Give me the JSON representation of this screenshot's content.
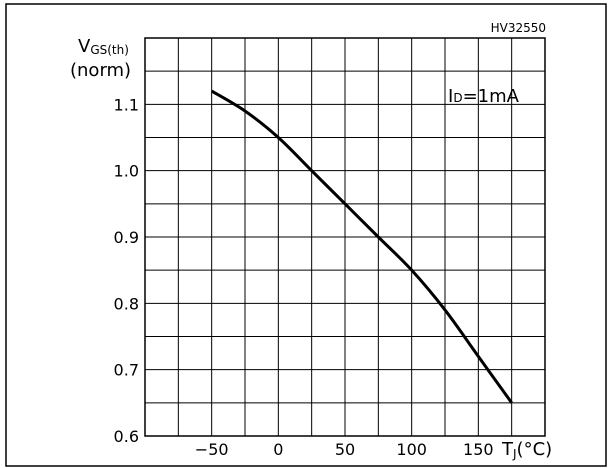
{
  "chart_data": {
    "type": "line",
    "code": "HV32550",
    "ylabel_main": "V",
    "ylabel_sub": "GS(th)",
    "ylabel_line2": "(norm)",
    "xlabel_main": "T",
    "xlabel_sub": "J",
    "xlabel_unit": "(°C)",
    "annotation": {
      "main": "I",
      "sub": "D",
      "rest": "=1mA"
    },
    "xlim": [
      -100,
      200
    ],
    "ylim": [
      0.6,
      1.2
    ],
    "xticks": [
      -50,
      0,
      50,
      100,
      150
    ],
    "xtick_labels": [
      "−50",
      "0",
      "50",
      "100",
      "150"
    ],
    "yticks": [
      0.6,
      0.7,
      0.8,
      0.9,
      1.0,
      1.1
    ],
    "ytick_labels": [
      "0.6",
      "0.7",
      "0.8",
      "0.9",
      "1.0",
      "1.1"
    ],
    "grid": true,
    "series": [
      {
        "x": [
          -50,
          -25,
          0,
          25,
          50,
          75,
          100,
          125,
          150,
          175
        ],
        "y": [
          1.12,
          1.09,
          1.05,
          1.0,
          0.95,
          0.9,
          0.85,
          0.79,
          0.72,
          0.65
        ]
      }
    ]
  }
}
